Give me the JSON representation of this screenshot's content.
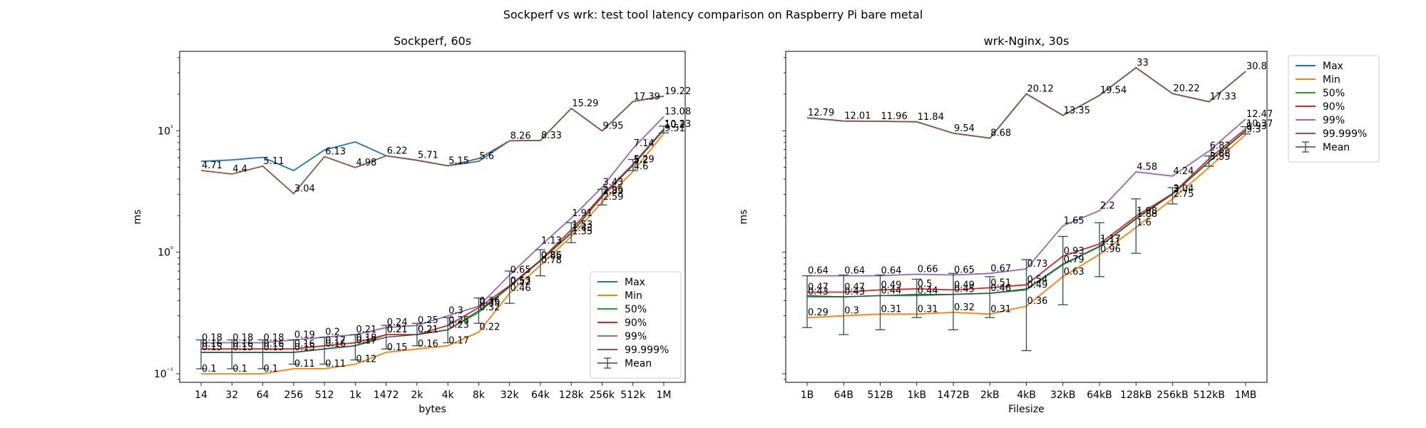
{
  "suptitle": "Sockperf vs wrk: test tool latency comparison on Raspberry Pi bare metal",
  "legend_entries": [
    {
      "label": "Max",
      "color": "#1f77b4",
      "kind": "line"
    },
    {
      "label": "Min",
      "color": "#ff7f0e",
      "kind": "line"
    },
    {
      "label": "50%",
      "color": "#2ca02c",
      "kind": "line"
    },
    {
      "label": "90%",
      "color": "#d62728",
      "kind": "line"
    },
    {
      "label": "99%",
      "color": "#9467bd",
      "kind": "line"
    },
    {
      "label": "99.999%",
      "color": "#8c564b",
      "kind": "line"
    },
    {
      "label": "Mean",
      "color": "#2f4f4f",
      "kind": "errorbar"
    }
  ],
  "chart_data": [
    {
      "type": "line",
      "title": "Sockperf, 60s",
      "xlabel": "bytes",
      "ylabel": "ms",
      "yscale": "log",
      "ylim": [
        0.085,
        45
      ],
      "yticks": [
        {
          "value": 0.1,
          "label": "10⁻¹"
        },
        {
          "value": 1,
          "label": "10⁰"
        },
        {
          "value": 10,
          "label": "10¹"
        }
      ],
      "categories": [
        "14",
        "32",
        "64",
        "256",
        "512",
        "1k",
        "1472",
        "2k",
        "4k",
        "8k",
        "32k",
        "64k",
        "128k",
        "256k",
        "512k",
        "1M"
      ],
      "legend_loc": "lower-right",
      "series": [
        {
          "name": "Max",
          "color": "#1f77b4",
          "values": [
            5.6,
            5.75,
            6.05,
            4.7,
            6.95,
            8.1,
            6.22,
            5.71,
            5.15,
            5.9,
            8.26,
            8.33,
            15.29,
            9.95,
            17.39,
            19.22
          ]
        },
        {
          "name": "Min",
          "color": "#ff7f0e",
          "values": [
            0.1,
            0.1,
            0.1,
            0.11,
            0.11,
            0.12,
            0.15,
            0.16,
            0.17,
            0.22,
            0.46,
            0.78,
            1.35,
            2.59,
            4.6,
            9.51
          ]
        },
        {
          "name": "50%",
          "color": "#2ca02c",
          "values": [
            0.15,
            0.15,
            0.15,
            0.15,
            0.16,
            0.17,
            0.21,
            0.21,
            0.23,
            0.32,
            0.52,
            0.85,
            1.43,
            2.89,
            5.2,
            10.2
          ]
        },
        {
          "name": "90%",
          "color": "#d62728",
          "values": [
            0.16,
            0.16,
            0.16,
            0.16,
            0.17,
            0.18,
            0.21,
            0.21,
            0.25,
            0.35,
            0.53,
            0.86,
            1.53,
            2.95,
            5.29,
            10.33
          ]
        },
        {
          "name": "99%",
          "color": "#9467bd",
          "values": [
            0.18,
            0.18,
            0.18,
            0.19,
            0.2,
            0.21,
            0.24,
            0.25,
            0.3,
            0.36,
            0.65,
            1.13,
            1.91,
            3.43,
            7.14,
            13.08
          ]
        },
        {
          "name": "99.999%",
          "color": "#8c564b",
          "values": [
            4.71,
            4.4,
            5.11,
            3.04,
            6.13,
            4.98,
            6.22,
            5.71,
            5.15,
            5.6,
            8.26,
            8.33,
            15.29,
            9.95,
            17.39,
            19.22
          ]
        }
      ],
      "data_labels": [
        {
          "series": "Max",
          "values": [
            null,
            null,
            null,
            null,
            null,
            null,
            null,
            null,
            null,
            null,
            null,
            null,
            null,
            null,
            null,
            null
          ]
        },
        {
          "series": "Min",
          "values": [
            0.1,
            0.1,
            0.1,
            0.11,
            0.11,
            0.12,
            0.15,
            0.16,
            0.17,
            0.22,
            0.46,
            0.78,
            1.35,
            2.59,
            4.6,
            9.51
          ]
        },
        {
          "series": "50%",
          "values": [
            0.15,
            0.15,
            0.15,
            0.15,
            0.16,
            0.17,
            0.21,
            0.21,
            0.23,
            0.32,
            0.52,
            0.85,
            1.43,
            2.89,
            5.2,
            10.2
          ]
        },
        {
          "series": "90%",
          "values": [
            0.16,
            0.16,
            0.16,
            0.16,
            0.17,
            0.18,
            0.21,
            0.21,
            0.25,
            0.35,
            0.53,
            0.86,
            1.53,
            2.95,
            5.29,
            10.33
          ]
        },
        {
          "series": "99%",
          "values": [
            0.18,
            0.18,
            0.18,
            0.19,
            0.2,
            0.21,
            0.24,
            0.25,
            0.3,
            0.36,
            0.65,
            1.13,
            1.91,
            3.43,
            7.14,
            13.08
          ]
        },
        {
          "series": "99.999%",
          "values": [
            4.71,
            4.4,
            5.11,
            3.04,
            6.13,
            4.98,
            6.22,
            5.71,
            5.15,
            5.6,
            8.26,
            8.33,
            15.29,
            9.95,
            17.39,
            19.22
          ]
        }
      ],
      "mean": {
        "name": "Mean",
        "color": "#2f4f4f",
        "values": [
          0.15,
          0.15,
          0.15,
          0.15,
          0.16,
          0.17,
          0.2,
          0.21,
          0.23,
          0.33,
          0.52,
          0.85,
          1.45,
          2.85,
          5.2,
          10.2
        ],
        "err_low": [
          0.11,
          0.11,
          0.11,
          0.12,
          0.12,
          0.13,
          0.16,
          0.17,
          0.18,
          0.26,
          0.38,
          0.64,
          1.2,
          2.45,
          4.7,
          9.6
        ],
        "err_high": [
          0.19,
          0.19,
          0.19,
          0.19,
          0.2,
          0.21,
          0.25,
          0.26,
          0.29,
          0.42,
          0.7,
          1.05,
          1.75,
          3.3,
          5.8,
          10.9
        ]
      }
    },
    {
      "type": "line",
      "title": "wrk-Nginx, 30s",
      "xlabel": "Filesize",
      "ylabel": "ms",
      "yscale": "log",
      "ylim": [
        0.085,
        45
      ],
      "yticks": [
        {
          "value": 0.1,
          "label": ""
        },
        {
          "value": 1,
          "label": ""
        },
        {
          "value": 10,
          "label": ""
        }
      ],
      "categories": [
        "1B",
        "64B",
        "512B",
        "1kB",
        "1472B",
        "2kB",
        "4kB",
        "32kB",
        "64kB",
        "128kB",
        "256kB",
        "512kB",
        "1MB"
      ],
      "legend_loc": "outside-upper-right",
      "series": [
        {
          "name": "Max",
          "color": "#1f77b4",
          "values": [
            12.79,
            12.01,
            11.96,
            11.84,
            9.54,
            8.68,
            20.12,
            13.35,
            19.54,
            33.0,
            20.22,
            17.33,
            30.8
          ]
        },
        {
          "name": "Min",
          "color": "#ff7f0e",
          "values": [
            0.29,
            0.3,
            0.31,
            0.31,
            0.32,
            0.31,
            0.36,
            0.63,
            0.96,
            1.6,
            2.75,
            5.0,
            9.3
          ]
        },
        {
          "name": "50%",
          "color": "#2ca02c",
          "values": [
            0.43,
            0.43,
            0.44,
            0.44,
            0.45,
            0.46,
            0.49,
            0.79,
            1.11,
            1.88,
            3.0,
            5.55,
            9.93
          ]
        },
        {
          "name": "90%",
          "color": "#d62728",
          "values": [
            0.47,
            0.47,
            0.49,
            0.5,
            0.49,
            0.51,
            0.54,
            0.93,
            1.17,
            1.98,
            3.04,
            5.88,
            10.37
          ]
        },
        {
          "name": "99%",
          "color": "#9467bd",
          "values": [
            0.64,
            0.64,
            0.64,
            0.66,
            0.65,
            0.67,
            0.73,
            1.65,
            2.2,
            4.58,
            4.24,
            6.82,
            12.47
          ]
        },
        {
          "name": "99.999%",
          "color": "#8c564b",
          "values": [
            12.79,
            12.01,
            11.96,
            11.84,
            9.54,
            8.68,
            20.12,
            13.35,
            19.54,
            33.0,
            20.22,
            17.33,
            30.8
          ]
        }
      ],
      "data_labels": [
        {
          "series": "Min",
          "values": [
            0.29,
            0.3,
            0.31,
            0.31,
            0.32,
            0.31,
            0.36,
            0.63,
            0.96,
            1.6,
            2.75,
            null,
            9.3
          ]
        },
        {
          "series": "50%",
          "values": [
            0.43,
            0.43,
            0.44,
            0.44,
            0.45,
            0.46,
            0.49,
            0.79,
            1.11,
            1.88,
            3.0,
            5.55,
            9.93
          ]
        },
        {
          "series": "90%",
          "values": [
            0.47,
            0.47,
            0.49,
            0.5,
            0.49,
            0.51,
            0.54,
            0.93,
            1.17,
            1.98,
            3.04,
            5.88,
            10.37
          ]
        },
        {
          "series": "99%",
          "values": [
            0.64,
            0.64,
            0.64,
            0.66,
            0.65,
            0.67,
            0.73,
            1.65,
            2.2,
            4.58,
            4.24,
            6.82,
            12.47
          ]
        },
        {
          "series": "99.999%",
          "values": [
            12.79,
            12.01,
            11.96,
            11.84,
            9.54,
            8.68,
            20.12,
            13.35,
            19.54,
            33.0,
            20.22,
            17.33,
            30.8
          ]
        }
      ],
      "mean": {
        "name": "Mean",
        "color": "#2f4f4f",
        "values": [
          0.44,
          0.43,
          0.44,
          0.45,
          0.45,
          0.46,
          0.5,
          0.8,
          1.12,
          1.9,
          3.0,
          5.6,
          10.0
        ],
        "err_low": [
          0.24,
          0.21,
          0.23,
          0.29,
          0.23,
          0.29,
          0.155,
          0.37,
          0.63,
          0.98,
          2.5,
          5.1,
          9.4
        ],
        "err_high": [
          0.64,
          0.65,
          0.65,
          0.6,
          0.67,
          0.63,
          0.87,
          1.35,
          1.75,
          2.75,
          3.4,
          6.2,
          10.8
        ]
      }
    }
  ]
}
